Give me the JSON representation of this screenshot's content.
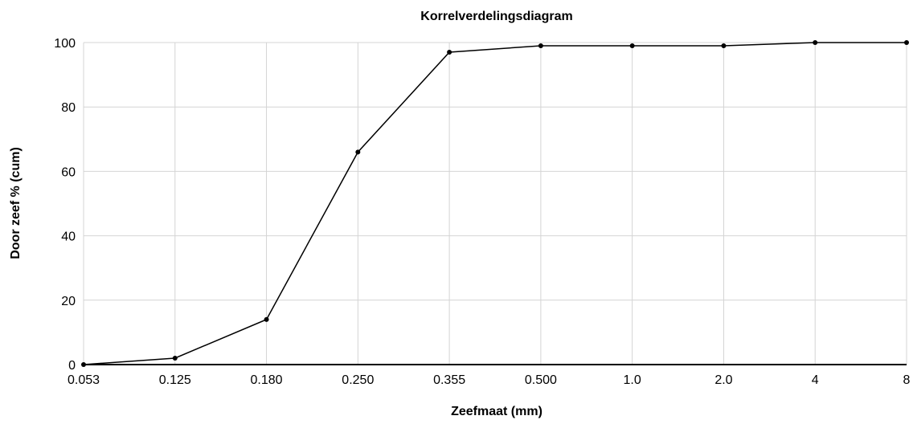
{
  "chart_data": {
    "type": "line",
    "title": "Korrelverdelingsdiagram",
    "xlabel": "Zeefmaat (mm)",
    "ylabel": "Door zeef % (cum)",
    "categories": [
      "0.053",
      "0.125",
      "0.180",
      "0.250",
      "0.355",
      "0.500",
      "1.0",
      "2.0",
      "4",
      "8"
    ],
    "series": [
      {
        "values": [
          0,
          2,
          14,
          66,
          97,
          99,
          99,
          99,
          100,
          100
        ]
      }
    ],
    "ylim": [
      0,
      100
    ],
    "yticks": [
      0,
      20,
      40,
      60,
      80,
      100
    ],
    "grid": true,
    "legend": "none",
    "colors": {
      "line": "#000000",
      "grid": "#d4d4d4",
      "axis": "#000000"
    }
  }
}
